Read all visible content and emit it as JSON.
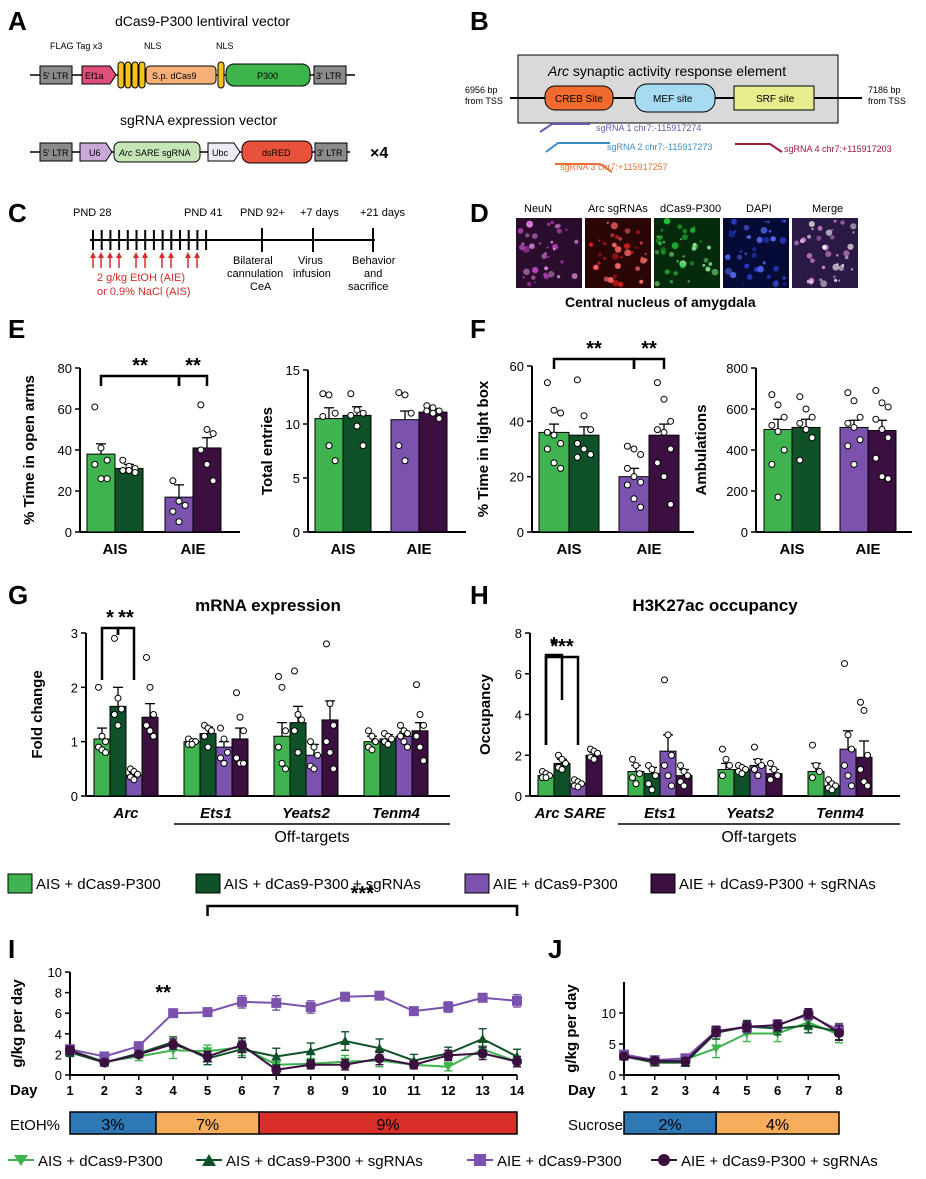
{
  "colors": {
    "ais": "#3fb34f",
    "ais_sg": "#0f5128",
    "aie": "#7b52ae",
    "aie_sg": "#3b1040"
  },
  "panels": {
    "A": "A",
    "B": "B",
    "C": "C",
    "D": "D",
    "E": "E",
    "F": "F",
    "G": "G",
    "H": "H",
    "I": "I",
    "J": "J"
  },
  "panelA": {
    "title1": "dCas9-P300 lentiviral vector",
    "title2": "sgRNA expression vector",
    "flag": "FLAG Tag x3",
    "nls1": "NLS",
    "nls2": "NLS",
    "ltr5": "5' LTR",
    "ef1a": "Ef1a",
    "spcas9": "S.p. dCas9",
    "p300": "P300",
    "ltr3": "3' LTR",
    "ltr5b": "5' LTR",
    "u6": "U6",
    "sgrna_italic": "Arc",
    "sgrna_rest": " SARE sgRNA",
    "ubc": "Ubc",
    "dsred": "dsRED",
    "ltr3b": "3' LTR",
    "times4": "×4"
  },
  "panelB": {
    "title_italic": "Arc",
    "title_rest": " synaptic activity response element",
    "left1": "6956 bp",
    "left2": "from TSS",
    "right1": "7186 bp",
    "right2": "from TSS",
    "creb": "CREB Site",
    "mef": "MEF site",
    "srf": "SRF site",
    "sg1": "sgRNA 1 chr7:-115917274",
    "sg2": "sgRNA 2 chr7:-115917273",
    "sg3": "sgRNA 3 chr7:+115917257",
    "sg4": "sgRNA 4 chr7:+115917203"
  },
  "panelC": {
    "pnd28": "PND 28",
    "pnd41": "PND 41",
    "pnd92": "PND 92+",
    "d7": "+7 days",
    "d21": "+21 days",
    "dose1": "2 g/kg EtOH (AIE)",
    "dose2": "or 0.9% NaCl (AIS)",
    "e1a": "Bilateral",
    "e1b": "cannulation",
    "e1c": "CeA",
    "e2a": "Virus",
    "e2b": "infusion",
    "e3a": "Behavior",
    "e3b": "and",
    "e3c": "sacrifice"
  },
  "panelD": {
    "labels": [
      "NeuN",
      "Arc sgRNAs",
      "dCas9-P300",
      "DAPI",
      "Merge"
    ],
    "caption": "Central nucleus of amygdala"
  },
  "legend1": [
    "AIS + dCas9-P300",
    "AIS + dCas9-P300 + sgRNAs",
    "AIE + dCas9-P300",
    "AIE + dCas9-P300 + sgRNAs"
  ],
  "legend2": [
    "AIS + dCas9-P300",
    "AIS + dCas9-P300 + sgRNAs",
    "AIE + dCas9-P300",
    "AIE + dCas9-P300 + sgRNAs"
  ],
  "chart_data": [
    {
      "id": "E1",
      "type": "bar",
      "ylabel": "% Time in open arms",
      "ylim": [
        0,
        80
      ],
      "yticks": [
        0,
        20,
        40,
        60,
        80
      ],
      "groups": [
        "AIS",
        "AIE"
      ],
      "values": [
        38,
        31,
        17,
        41
      ],
      "sem": [
        5,
        2,
        6,
        5
      ],
      "points": [
        [
          61,
          41,
          35,
          33,
          26,
          26
        ],
        [
          35,
          32,
          31,
          30,
          30,
          29
        ],
        [
          25,
          15,
          13,
          10,
          5
        ],
        [
          62,
          50,
          48,
          40,
          33,
          25
        ]
      ],
      "sig": [
        {
          "from": 0,
          "to": 2,
          "label": "**"
        },
        {
          "from": 2,
          "to": 3,
          "label": "**"
        }
      ]
    },
    {
      "id": "E2",
      "type": "bar",
      "ylabel": "Total entries",
      "ylim": [
        0,
        15
      ],
      "yticks": [
        0,
        5,
        10,
        15
      ],
      "groups": [
        "AIS",
        "AIE"
      ],
      "values": [
        10.5,
        10.8,
        10.4,
        11.1
      ],
      "sem": [
        1.0,
        0.8,
        0.8,
        0.3
      ],
      "points": [
        [
          12.8,
          12.7,
          11,
          10.7,
          8,
          6.6
        ],
        [
          12.8,
          11.3,
          11,
          10.8,
          9.8,
          8
        ],
        [
          12.9,
          12.7,
          11,
          8,
          6.6
        ],
        [
          11.7,
          11.5,
          11.2,
          11.2,
          11,
          10.5
        ]
      ],
      "sig": []
    },
    {
      "id": "F1",
      "type": "bar",
      "ylabel": "% Time in light box",
      "ylim": [
        0,
        60
      ],
      "yticks": [
        0,
        20,
        40,
        60
      ],
      "groups": [
        "AIS",
        "AIE"
      ],
      "values": [
        36,
        35,
        20,
        35
      ],
      "sem": [
        3,
        3,
        3,
        4
      ],
      "points": [
        [
          54,
          44,
          43,
          36,
          35,
          32,
          30,
          25,
          23
        ],
        [
          55,
          42,
          37,
          32,
          30,
          28,
          27
        ],
        [
          31,
          30,
          28,
          23,
          20,
          18,
          17,
          12,
          9
        ],
        [
          54,
          48,
          40,
          37,
          36,
          30,
          25,
          20,
          10
        ]
      ],
      "sig": [
        {
          "from": 0,
          "to": 2,
          "label": "**"
        },
        {
          "from": 2,
          "to": 3,
          "label": "**"
        }
      ]
    },
    {
      "id": "F2",
      "type": "bar",
      "ylabel": "Ambulations",
      "ylim": [
        0,
        800
      ],
      "yticks": [
        0,
        200,
        400,
        600,
        800
      ],
      "groups": [
        "AIS",
        "AIE"
      ],
      "values": [
        500,
        510,
        510,
        495
      ],
      "sem": [
        50,
        40,
        35,
        50
      ],
      "points": [
        [
          670,
          620,
          560,
          520,
          490,
          400,
          330,
          170
        ],
        [
          660,
          600,
          560,
          530,
          500,
          460,
          350
        ],
        [
          680,
          640,
          560,
          530,
          510,
          450,
          420,
          330
        ],
        [
          690,
          630,
          610,
          550,
          500,
          460,
          360,
          270,
          260
        ]
      ],
      "sig": []
    },
    {
      "id": "G",
      "type": "bar",
      "title": "mRNA expression",
      "ylabel": "Fold change",
      "ylim": [
        0,
        3
      ],
      "yticks": [
        0,
        1,
        2,
        3
      ],
      "categories": [
        "Arc",
        "Ets1",
        "Yeats2",
        "Tenm4"
      ],
      "xlabel": "Off-targets",
      "values": [
        [
          1.05,
          1.65,
          0.38,
          1.45
        ],
        [
          1.0,
          1.15,
          0.9,
          1.05
        ],
        [
          1.1,
          1.35,
          0.75,
          1.4
        ],
        [
          1.0,
          1.05,
          1.1,
          1.2
        ]
      ],
      "sem": [
        [
          0.2,
          0.35,
          0.05,
          0.25
        ],
        [
          0.05,
          0.12,
          0.1,
          0.2
        ],
        [
          0.25,
          0.3,
          0.2,
          0.35
        ],
        [
          0.1,
          0.08,
          0.08,
          0.15
        ]
      ],
      "points": [
        [
          [
            2.0,
            1.1,
            1.0,
            0.9,
            0.85,
            0.8
          ],
          [
            2.9,
            1.8,
            1.6,
            1.5,
            1.3
          ],
          [
            0.5,
            0.45,
            0.4,
            0.35,
            0.3
          ],
          [
            2.55,
            2.0,
            1.5,
            1.3,
            1.2,
            1.1
          ]
        ],
        [
          [
            1.05,
            1.0,
            1.0,
            0.95,
            0.95
          ],
          [
            1.3,
            1.25,
            1.2,
            1.1,
            0.9
          ],
          [
            1.25,
            1.05,
            0.8,
            0.7,
            0.6
          ],
          [
            1.9,
            1.45,
            1.2,
            0.7,
            0.6,
            0.6
          ]
        ],
        [
          [
            2.2,
            2.0,
            1.2,
            0.9,
            0.6,
            0.5
          ],
          [
            2.3,
            1.5,
            1.4,
            1.2,
            0.8
          ],
          [
            1.0,
            0.9,
            0.75,
            0.55,
            0.5
          ],
          [
            2.8,
            1.7,
            1.3,
            1.0,
            0.8,
            0.5
          ]
        ],
        [
          [
            1.2,
            1.1,
            1.0,
            0.9,
            0.85
          ],
          [
            1.15,
            1.1,
            1.05,
            1.0,
            0.95
          ],
          [
            1.3,
            1.2,
            1.15,
            1.1,
            1.0,
            0.9
          ],
          [
            2.05,
            1.5,
            1.3,
            1.1,
            0.9,
            0.65
          ]
        ]
      ],
      "sig": [
        {
          "from": 0,
          "to": 1,
          "label": "*"
        },
        {
          "from": 1,
          "to": 2,
          "label": "**"
        }
      ]
    },
    {
      "id": "H",
      "type": "bar",
      "title": "H3K27ac occupancy",
      "ylabel": "Occupancy",
      "ylim": [
        0,
        8
      ],
      "yticks": [
        0,
        2,
        4,
        6,
        8
      ],
      "categories": [
        "Arc SARE",
        "Ets1",
        "Yeats2",
        "Tenm4"
      ],
      "xlabel": "Off-targets",
      "values": [
        [
          1.0,
          1.6,
          0.6,
          2.0
        ],
        [
          1.2,
          1.1,
          2.2,
          1.0
        ],
        [
          1.3,
          1.3,
          1.5,
          1.1
        ],
        [
          1.2,
          0.5,
          2.3,
          1.9
        ]
      ],
      "sem": [
        [
          0.1,
          0.2,
          0.1,
          0.15
        ],
        [
          0.3,
          0.3,
          0.8,
          0.3
        ],
        [
          0.3,
          0.1,
          0.3,
          0.2
        ],
        [
          0.4,
          0.1,
          0.9,
          0.8
        ]
      ],
      "points": [
        [
          [
            1.2,
            1.1,
            1.0,
            0.9,
            0.9
          ],
          [
            2.0,
            1.8,
            1.6,
            1.4,
            1.3
          ],
          [
            0.8,
            0.7,
            0.6,
            0.5,
            0.45
          ],
          [
            2.3,
            2.2,
            2.1,
            1.9,
            1.8
          ]
        ],
        [
          [
            1.8,
            1.5,
            1.1,
            0.9,
            0.6
          ],
          [
            1.5,
            1.3,
            1.0,
            0.6,
            0.3
          ],
          [
            5.7,
            3.0,
            2.0,
            1.5,
            1.0,
            0.5
          ],
          [
            1.5,
            1.2,
            1.0,
            0.7,
            0.5
          ]
        ],
        [
          [
            2.3,
            1.8,
            1.5,
            1.0
          ],
          [
            1.5,
            1.4,
            1.3,
            1.2,
            1.1
          ],
          [
            2.4,
            1.7,
            1.5,
            1.3,
            1.0
          ],
          [
            1.6,
            1.3,
            1.0,
            0.8
          ]
        ],
        [
          [
            2.5,
            1.5,
            1.2,
            0.9
          ],
          [
            0.8,
            0.6,
            0.5,
            0.4,
            0.3
          ],
          [
            6.5,
            3.0,
            2.3,
            1.5,
            1.0,
            0.5
          ],
          [
            4.6,
            4.2,
            2.0,
            1.3,
            0.7,
            0.5
          ]
        ]
      ],
      "sig": [
        {
          "from": 0,
          "to": 1,
          "label": "*"
        },
        {
          "from": 0,
          "to": 2,
          "label": "***"
        }
      ]
    },
    {
      "id": "I",
      "type": "line",
      "ylabel": "g/kg per day",
      "xlabel": "Day",
      "ylim": [
        0,
        10
      ],
      "yticks": [
        0,
        2,
        4,
        6,
        8,
        10
      ],
      "x": [
        1,
        2,
        3,
        4,
        5,
        6,
        7,
        8,
        9,
        10,
        11,
        12,
        13,
        14
      ],
      "series": [
        {
          "name": "AIS + dCas9-P300",
          "values": [
            2.4,
            1.3,
            1.8,
            2.4,
            2.3,
            2.7,
            1.0,
            1.1,
            1.3,
            1.4,
            1.0,
            0.8,
            2.5,
            1.3
          ],
          "err": [
            0.4,
            0.3,
            0.4,
            0.8,
            0.6,
            0.8,
            0.5,
            0.5,
            0.6,
            0.6,
            0.4,
            0.4,
            0.8,
            0.5
          ]
        },
        {
          "name": "AIS + dCas9-P300 + sgRNAs",
          "values": [
            2.2,
            1.2,
            2.1,
            3.2,
            1.6,
            2.5,
            1.8,
            2.3,
            3.3,
            2.6,
            1.4,
            2.1,
            3.5,
            1.8
          ],
          "err": [
            0.4,
            0.3,
            0.4,
            0.5,
            0.6,
            0.8,
            0.8,
            0.8,
            0.9,
            0.9,
            0.6,
            0.6,
            1.0,
            0.7
          ]
        },
        {
          "name": "AIE + dCas9-P300",
          "values": [
            2.5,
            1.8,
            2.8,
            6.0,
            6.1,
            7.1,
            7.0,
            6.6,
            7.6,
            7.7,
            6.2,
            6.6,
            7.5,
            7.2
          ],
          "err": [
            0.4,
            0.3,
            0.3,
            0.3,
            0.4,
            0.6,
            0.7,
            0.6,
            0.4,
            0.4,
            0.4,
            0.5,
            0.4,
            0.6
          ]
        },
        {
          "name": "AIE + dCas9-P300 + sgRNAs",
          "values": [
            2.4,
            1.2,
            2.0,
            3.0,
            1.8,
            2.9,
            0.5,
            1.0,
            1.0,
            1.6,
            1.0,
            1.9,
            2.1,
            1.3
          ],
          "err": [
            0.4,
            0.3,
            0.3,
            0.5,
            0.5,
            0.7,
            0.4,
            0.4,
            0.5,
            0.6,
            0.4,
            0.5,
            0.6,
            0.5
          ]
        }
      ],
      "bands": [
        {
          "label": "3%",
          "from": 1,
          "to": 3.5,
          "color": "#2e78b6"
        },
        {
          "label": "7%",
          "from": 3.5,
          "to": 6.5,
          "color": "#f6ae5d"
        },
        {
          "label": "9%",
          "from": 6.5,
          "to": 14,
          "color": "#d83028"
        }
      ],
      "band_title": "EtOH%",
      "sig": [
        {
          "label": "**",
          "x": 4
        },
        {
          "label": "***",
          "from": 5,
          "to": 14
        }
      ]
    },
    {
      "id": "J",
      "type": "line",
      "ylabel": "g/kg per day",
      "xlabel": "Day",
      "ylim": [
        0,
        15
      ],
      "yticks": [
        0,
        5,
        10
      ],
      "x": [
        1,
        2,
        3,
        4,
        5,
        6,
        7,
        8
      ],
      "series": [
        {
          "name": "AIS + dCas9-P300",
          "values": [
            3.2,
            2.0,
            2.5,
            4.3,
            6.7,
            6.7,
            8.5,
            6.5
          ],
          "err": [
            0.5,
            0.5,
            0.6,
            1.5,
            1.3,
            1.3,
            1.2,
            1.3
          ]
        },
        {
          "name": "AIS + dCas9-P300 + sgRNAs",
          "values": [
            3.0,
            2.0,
            2.0,
            6.8,
            7.8,
            7.5,
            8.0,
            7.0
          ],
          "err": [
            0.5,
            0.5,
            0.6,
            1.0,
            1.0,
            1.0,
            1.2,
            1.3
          ]
        },
        {
          "name": "AIE + dCas9-P300",
          "values": [
            3.3,
            2.4,
            2.7,
            7.1,
            7.7,
            8.1,
            9.7,
            7.2
          ],
          "err": [
            0.5,
            0.5,
            0.6,
            0.8,
            0.8,
            0.8,
            0.8,
            1.0
          ]
        },
        {
          "name": "AIE + dCas9-P300 + sgRNAs",
          "values": [
            3.0,
            2.3,
            2.2,
            7.0,
            7.8,
            8.0,
            9.9,
            6.8
          ],
          "err": [
            0.5,
            0.5,
            0.6,
            0.8,
            0.8,
            0.8,
            0.8,
            1.2
          ]
        }
      ],
      "bands": [
        {
          "label": "2%",
          "from": 1,
          "to": 4,
          "color": "#2e78b6"
        },
        {
          "label": "4%",
          "from": 4,
          "to": 8,
          "color": "#f6ae5d"
        }
      ],
      "band_title": "Sucrose%"
    }
  ]
}
